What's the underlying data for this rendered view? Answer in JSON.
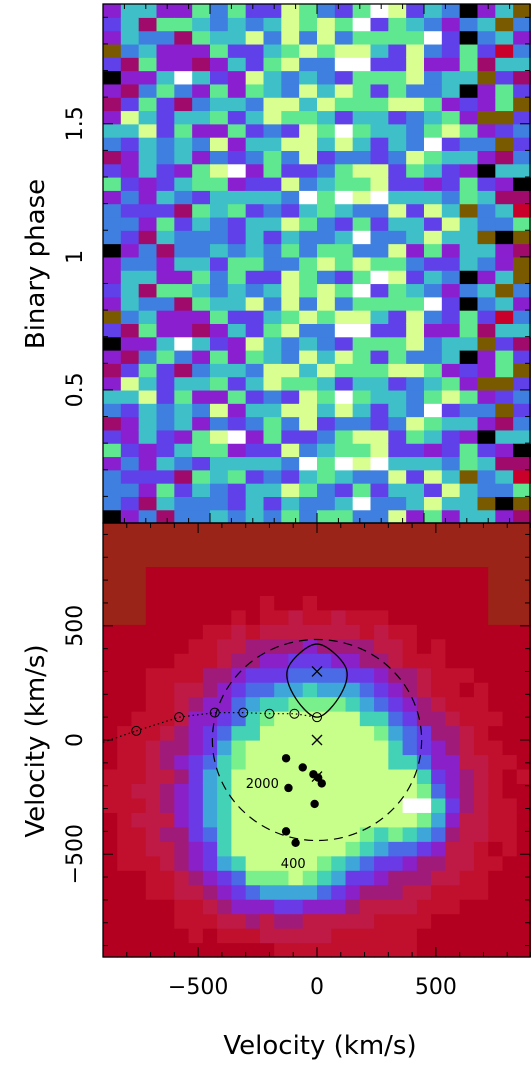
{
  "chart_data": [
    {
      "type": "heatmap",
      "panel": "trailed spectra",
      "ylabel": "Binary phase",
      "ylim": [
        0,
        1.95
      ],
      "yticks": [
        "0.5",
        "1",
        "1.5"
      ],
      "xlim": [
        -1000,
        1000
      ],
      "xbins": 24,
      "phase_bins": 39,
      "colormap": [
        "#000000",
        "#7a5a00",
        "#c8002a",
        "#a00a6a",
        "#8a1fd0",
        "#6040e8",
        "#3f7fe0",
        "#3fc0c8",
        "#5fe890",
        "#d8ff90",
        "#ffffff"
      ],
      "pattern_seed": 7
    },
    {
      "type": "heatmap",
      "panel": "Doppler tomogram",
      "xlabel": "Velocity (km/s)",
      "ylabel": "Velocity (km/s)",
      "xlim": [
        -900,
        900
      ],
      "ylim": [
        -950,
        950
      ],
      "xticks": [
        "−500",
        "0",
        "500"
      ],
      "yticks": [
        "−500",
        "0",
        "500"
      ],
      "circle_radius": 440,
      "star_lobe_points": [
        [
          0,
          100
        ],
        [
          -100,
          200
        ],
        [
          -120,
          320
        ],
        [
          0,
          420
        ],
        [
          120,
          320
        ],
        [
          100,
          200
        ]
      ],
      "crosses": [
        [
          0,
          300
        ],
        [
          0,
          0
        ],
        [
          0,
          -160
        ]
      ],
      "stream_open": [
        [
          -760,
          40
        ],
        [
          -580,
          100
        ],
        [
          -430,
          120
        ],
        [
          -310,
          120
        ],
        [
          -200,
          115
        ],
        [
          -95,
          115
        ],
        [
          0,
          100
        ]
      ],
      "stream_filled": [
        [
          -130,
          -80
        ],
        [
          -60,
          -120
        ],
        [
          -15,
          -150
        ],
        [
          5,
          -165
        ],
        [
          20,
          -190
        ],
        [
          -120,
          -210
        ],
        [
          -10,
          -280
        ],
        [
          -130,
          -400
        ],
        [
          -90,
          -450
        ]
      ],
      "annotations": [
        {
          "text": "2000",
          "x": -230,
          "y": -210
        },
        {
          "text": "400",
          "x": -100,
          "y": -560
        }
      ]
    }
  ]
}
